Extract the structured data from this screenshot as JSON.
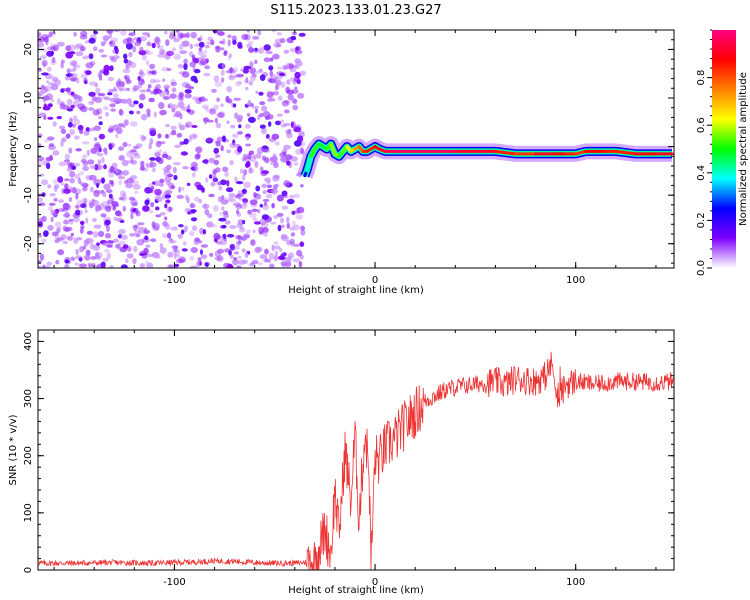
{
  "figure": {
    "title": "S115.2023.133.01.23.G27"
  },
  "chart_data": [
    {
      "type": "heatmap",
      "xlabel": "Height of straight line (km)",
      "ylabel": "Frequency (Hz)",
      "xlim": [
        -168,
        149
      ],
      "ylim": [
        -25,
        24
      ],
      "xticks": [
        -100,
        0,
        100
      ],
      "yticks": [
        -20,
        -10,
        0,
        10,
        20
      ],
      "colorbar": {
        "label": "Normalized spectral amplitude",
        "range": [
          0,
          1
        ],
        "ticks": [
          0.0,
          0.2,
          0.4,
          0.6,
          0.8
        ],
        "tick_labels": [
          "0.0",
          "0.2",
          "0.4",
          "0.6",
          "0.8"
        ],
        "colormap": [
          "#ffffff",
          "#7f00ff",
          "#0000ff",
          "#00ffff",
          "#00ff00",
          "#ffff00",
          "#ff8000",
          "#ff0000",
          "#ff0080"
        ]
      },
      "noise_region": {
        "x_range": [
          -168,
          -36
        ],
        "freq_range": [
          -25,
          24
        ],
        "typical_amplitude": [
          0.05,
          0.2
        ]
      },
      "signal_track": {
        "x": [
          -35,
          -34,
          -32,
          -30,
          -28,
          -26,
          -24,
          -22,
          -20,
          -18,
          -16,
          -14,
          -12,
          -10,
          -8,
          -6,
          -4,
          -2,
          0,
          2,
          5,
          10,
          20,
          40,
          60,
          70,
          80,
          85,
          90,
          95,
          100,
          105,
          110,
          115,
          120,
          130,
          140,
          148
        ],
        "freq_hz": [
          -6,
          -5,
          -2,
          -0.5,
          0.5,
          0,
          -0.5,
          0.5,
          -1.5,
          -2,
          -1,
          0,
          -1,
          -0.5,
          0,
          -1,
          -1,
          -0.5,
          0,
          -0.5,
          -1,
          -1,
          -1,
          -1,
          -1,
          -1.5,
          -1.5,
          -1.5,
          -1.5,
          -1.5,
          -1.5,
          -1,
          -1,
          -1,
          -1,
          -1.5,
          -1.5,
          -1.5
        ],
        "amplitude": [
          0.2,
          0.3,
          0.5,
          0.55,
          0.5,
          0.45,
          0.5,
          0.55,
          0.6,
          0.55,
          0.5,
          0.6,
          0.65,
          0.7,
          0.75,
          0.8,
          0.85,
          0.85,
          0.85,
          0.9,
          0.95,
          0.95,
          1.0,
          0.95,
          0.9,
          0.8,
          0.85,
          0.95,
          0.85,
          0.9,
          0.8,
          0.85,
          0.9,
          0.85,
          0.85,
          0.85,
          0.9,
          0.9
        ]
      }
    },
    {
      "type": "line",
      "xlabel": "Height of straight line (km)",
      "ylabel": "SNR (10 * v/v)",
      "xlim": [
        -168,
        149
      ],
      "ylim": [
        0,
        420
      ],
      "xticks": [
        -100,
        0,
        100
      ],
      "yticks": [
        0,
        100,
        200,
        300,
        400
      ],
      "line_color": "#ee3333",
      "series": [
        {
          "x": [
            -168,
            -150,
            -130,
            -110,
            -90,
            -80,
            -70,
            -60,
            -50,
            -40,
            -30,
            -25,
            -22,
            -20,
            -18,
            -15,
            -12,
            -10,
            -8,
            -5,
            -3,
            -2,
            0,
            2,
            5,
            10,
            15,
            20,
            25,
            30,
            35,
            40,
            50,
            60,
            65,
            70,
            80,
            85,
            88,
            90,
            92,
            95,
            100,
            110,
            120,
            130,
            140,
            149
          ],
          "y": [
            12,
            12,
            13,
            12,
            14,
            16,
            15,
            13,
            12,
            12,
            15,
            70,
            30,
            140,
            60,
            210,
            120,
            235,
            90,
            240,
            180,
            10,
            200,
            190,
            215,
            230,
            255,
            275,
            295,
            305,
            315,
            320,
            325,
            330,
            325,
            335,
            330,
            340,
            360,
            330,
            300,
            325,
            330,
            325,
            330,
            330,
            328,
            330
          ]
        }
      ]
    }
  ]
}
